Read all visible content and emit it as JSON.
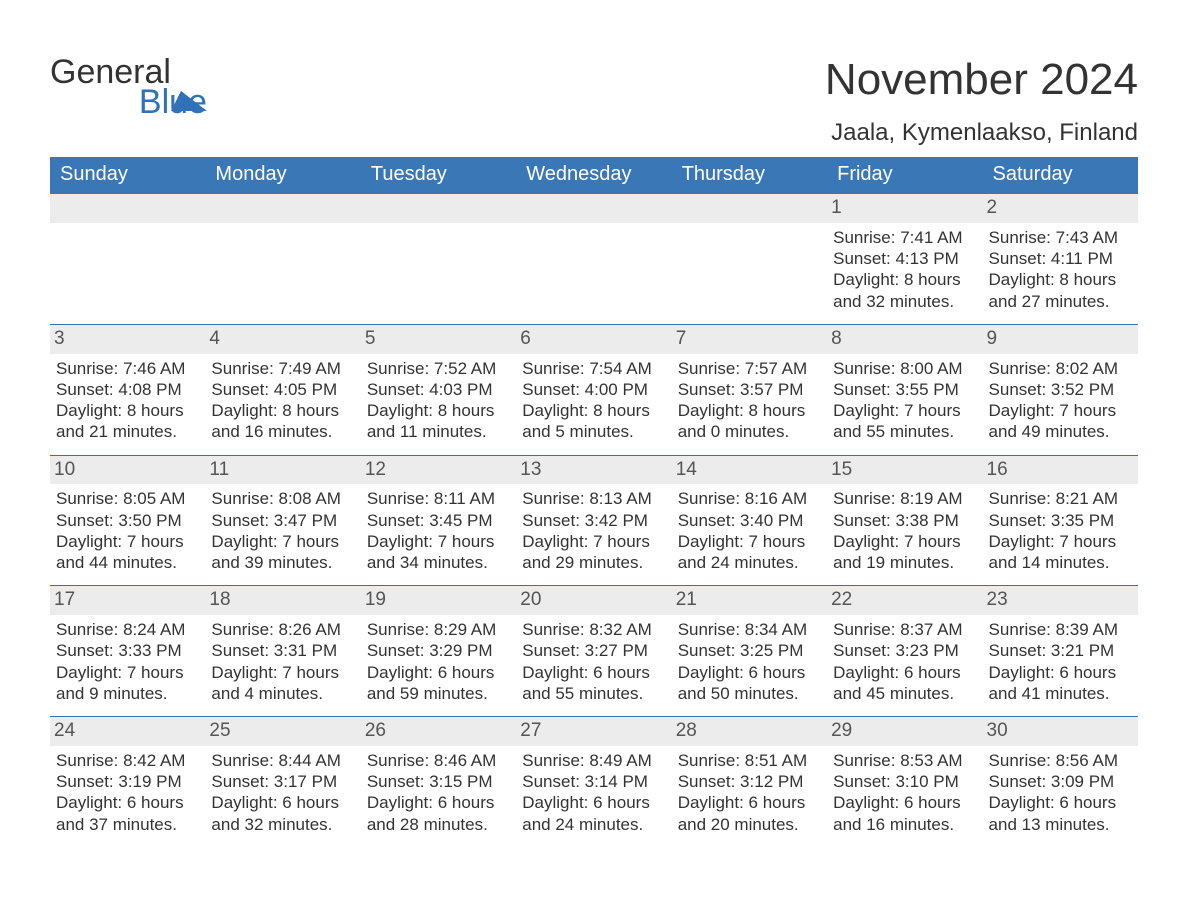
{
  "logo": {
    "word1": "General",
    "word2": "Blue"
  },
  "title": "November 2024",
  "location": "Jaala, Kymenlaakso, Finland",
  "colors": {
    "header_bg": "#3a77b7",
    "header_text": "#ffffff",
    "date_bar_bg": "#ececec",
    "date_bar_text": "#555555",
    "rule": "#2f72b9",
    "body_text": "#333333",
    "logo_blue": "#2f72b9",
    "background": "#ffffff"
  },
  "fonts": {
    "family": "Arial, Helvetica, sans-serif",
    "month_title_size": 44,
    "location_size": 24,
    "day_header_size": 20,
    "date_number_size": 19,
    "body_size": 17
  },
  "labels": {
    "sunrise": "Sunrise",
    "sunset": "Sunset",
    "daylight": "Daylight"
  },
  "day_names": [
    "Sunday",
    "Monday",
    "Tuesday",
    "Wednesday",
    "Thursday",
    "Friday",
    "Saturday"
  ],
  "weeks": [
    [
      null,
      null,
      null,
      null,
      null,
      {
        "date": "1",
        "sunrise": "7:41 AM",
        "sunset": "4:13 PM",
        "daylight_h": 8,
        "daylight_m": 32
      },
      {
        "date": "2",
        "sunrise": "7:43 AM",
        "sunset": "4:11 PM",
        "daylight_h": 8,
        "daylight_m": 27
      }
    ],
    [
      {
        "date": "3",
        "sunrise": "7:46 AM",
        "sunset": "4:08 PM",
        "daylight_h": 8,
        "daylight_m": 21
      },
      {
        "date": "4",
        "sunrise": "7:49 AM",
        "sunset": "4:05 PM",
        "daylight_h": 8,
        "daylight_m": 16
      },
      {
        "date": "5",
        "sunrise": "7:52 AM",
        "sunset": "4:03 PM",
        "daylight_h": 8,
        "daylight_m": 11
      },
      {
        "date": "6",
        "sunrise": "7:54 AM",
        "sunset": "4:00 PM",
        "daylight_h": 8,
        "daylight_m": 5
      },
      {
        "date": "7",
        "sunrise": "7:57 AM",
        "sunset": "3:57 PM",
        "daylight_h": 8,
        "daylight_m": 0
      },
      {
        "date": "8",
        "sunrise": "8:00 AM",
        "sunset": "3:55 PM",
        "daylight_h": 7,
        "daylight_m": 55
      },
      {
        "date": "9",
        "sunrise": "8:02 AM",
        "sunset": "3:52 PM",
        "daylight_h": 7,
        "daylight_m": 49
      }
    ],
    [
      {
        "date": "10",
        "sunrise": "8:05 AM",
        "sunset": "3:50 PM",
        "daylight_h": 7,
        "daylight_m": 44
      },
      {
        "date": "11",
        "sunrise": "8:08 AM",
        "sunset": "3:47 PM",
        "daylight_h": 7,
        "daylight_m": 39
      },
      {
        "date": "12",
        "sunrise": "8:11 AM",
        "sunset": "3:45 PM",
        "daylight_h": 7,
        "daylight_m": 34
      },
      {
        "date": "13",
        "sunrise": "8:13 AM",
        "sunset": "3:42 PM",
        "daylight_h": 7,
        "daylight_m": 29
      },
      {
        "date": "14",
        "sunrise": "8:16 AM",
        "sunset": "3:40 PM",
        "daylight_h": 7,
        "daylight_m": 24
      },
      {
        "date": "15",
        "sunrise": "8:19 AM",
        "sunset": "3:38 PM",
        "daylight_h": 7,
        "daylight_m": 19
      },
      {
        "date": "16",
        "sunrise": "8:21 AM",
        "sunset": "3:35 PM",
        "daylight_h": 7,
        "daylight_m": 14
      }
    ],
    [
      {
        "date": "17",
        "sunrise": "8:24 AM",
        "sunset": "3:33 PM",
        "daylight_h": 7,
        "daylight_m": 9
      },
      {
        "date": "18",
        "sunrise": "8:26 AM",
        "sunset": "3:31 PM",
        "daylight_h": 7,
        "daylight_m": 4
      },
      {
        "date": "19",
        "sunrise": "8:29 AM",
        "sunset": "3:29 PM",
        "daylight_h": 6,
        "daylight_m": 59
      },
      {
        "date": "20",
        "sunrise": "8:32 AM",
        "sunset": "3:27 PM",
        "daylight_h": 6,
        "daylight_m": 55
      },
      {
        "date": "21",
        "sunrise": "8:34 AM",
        "sunset": "3:25 PM",
        "daylight_h": 6,
        "daylight_m": 50
      },
      {
        "date": "22",
        "sunrise": "8:37 AM",
        "sunset": "3:23 PM",
        "daylight_h": 6,
        "daylight_m": 45
      },
      {
        "date": "23",
        "sunrise": "8:39 AM",
        "sunset": "3:21 PM",
        "daylight_h": 6,
        "daylight_m": 41
      }
    ],
    [
      {
        "date": "24",
        "sunrise": "8:42 AM",
        "sunset": "3:19 PM",
        "daylight_h": 6,
        "daylight_m": 37
      },
      {
        "date": "25",
        "sunrise": "8:44 AM",
        "sunset": "3:17 PM",
        "daylight_h": 6,
        "daylight_m": 32
      },
      {
        "date": "26",
        "sunrise": "8:46 AM",
        "sunset": "3:15 PM",
        "daylight_h": 6,
        "daylight_m": 28
      },
      {
        "date": "27",
        "sunrise": "8:49 AM",
        "sunset": "3:14 PM",
        "daylight_h": 6,
        "daylight_m": 24
      },
      {
        "date": "28",
        "sunrise": "8:51 AM",
        "sunset": "3:12 PM",
        "daylight_h": 6,
        "daylight_m": 20
      },
      {
        "date": "29",
        "sunrise": "8:53 AM",
        "sunset": "3:10 PM",
        "daylight_h": 6,
        "daylight_m": 16
      },
      {
        "date": "30",
        "sunrise": "8:56 AM",
        "sunset": "3:09 PM",
        "daylight_h": 6,
        "daylight_m": 13
      }
    ]
  ]
}
